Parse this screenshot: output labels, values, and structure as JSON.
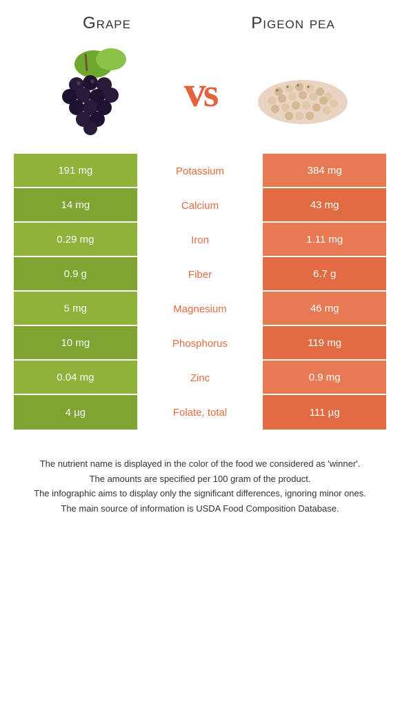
{
  "header": {
    "left_title": "Grape",
    "right_title": "Pigeon pea",
    "vs": "vs"
  },
  "colors": {
    "left_bg_a": "#8eb23a",
    "left_bg_b": "#7fa431",
    "right_bg_a": "#e87a53",
    "right_bg_b": "#e16b42",
    "nutrient_winner": "#e16b42",
    "text_white": "#ffffff"
  },
  "rows": [
    {
      "nutrient": "Potassium",
      "left": "191 mg",
      "right": "384 mg"
    },
    {
      "nutrient": "Calcium",
      "left": "14 mg",
      "right": "43 mg"
    },
    {
      "nutrient": "Iron",
      "left": "0.29 mg",
      "right": "1.11 mg"
    },
    {
      "nutrient": "Fiber",
      "left": "0.9 g",
      "right": "6.7 g"
    },
    {
      "nutrient": "Magnesium",
      "left": "5 mg",
      "right": "46 mg"
    },
    {
      "nutrient": "Phosphorus",
      "left": "10 mg",
      "right": "119 mg"
    },
    {
      "nutrient": "Zinc",
      "left": "0.04 mg",
      "right": "0.9 mg"
    },
    {
      "nutrient": "Folate, total",
      "left": "4 µg",
      "right": "111 µg"
    }
  ],
  "footer": {
    "l1": "The nutrient name is displayed in the color of the food we considered as 'winner'.",
    "l2": "The amounts are specified per 100 gram of the product.",
    "l3": "The infographic aims to display only the significant differences, ignoring minor ones.",
    "l4": "The main source of information is USDA Food Composition Database."
  }
}
